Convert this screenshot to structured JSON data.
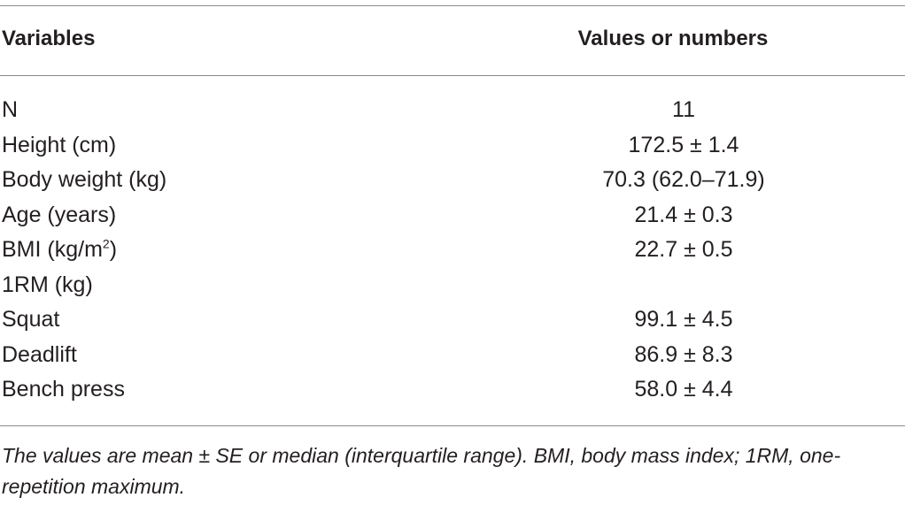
{
  "table": {
    "headers": {
      "variables": "Variables",
      "values": "Values or numbers"
    },
    "rows": [
      {
        "label": "N",
        "value": "11"
      },
      {
        "label": "Height (cm)",
        "value": "172.5 ± 1.4"
      },
      {
        "label": "Body weight (kg)",
        "value": "70.3 (62.0–71.9)"
      },
      {
        "label": "Age (years)",
        "value": "21.4 ± 0.3"
      },
      {
        "label_main": "BMI (kg/m",
        "label_sup": "2",
        "label_end": ")",
        "value": "22.7 ± 0.5"
      },
      {
        "label": "1RM (kg)",
        "value": ""
      },
      {
        "label": "Squat",
        "value": "99.1 ± 4.5"
      },
      {
        "label": "Deadlift",
        "value": "86.9 ± 8.3"
      },
      {
        "label": "Bench press",
        "value": "58.0 ± 4.4"
      }
    ],
    "footnote": "The values are mean ± SE or median (interquartile range). BMI, body mass index; 1RM, one-repetition maximum."
  }
}
